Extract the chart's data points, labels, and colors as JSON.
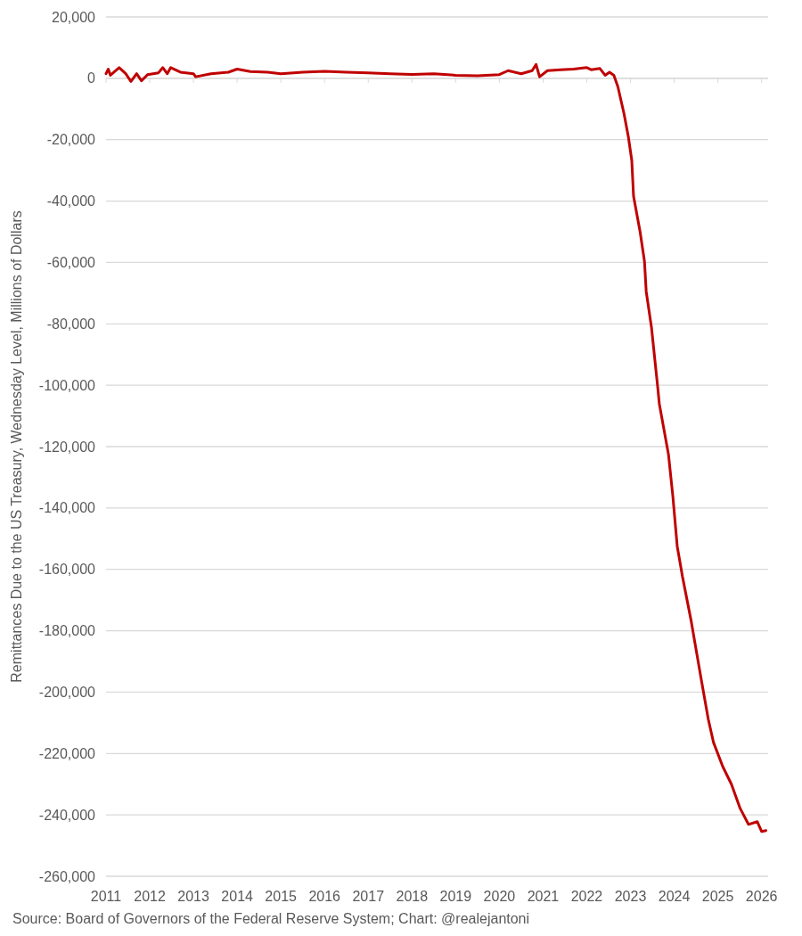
{
  "chart_data": {
    "type": "line",
    "ylabel": "Remittances Due to the US Treasury, Wednesday Level, Millions of Dollars",
    "annotations": [
      "Source: Board of Governors of the Federal Reserve System; Chart: @realejantoni"
    ],
    "x": [
      2011.0,
      2011.05,
      2011.1,
      2011.3,
      2011.45,
      2011.57,
      2011.7,
      2011.81,
      2011.95,
      2012.2,
      2012.3,
      2012.4,
      2012.48,
      2012.7,
      2013.0,
      2013.05,
      2013.4,
      2013.8,
      2014.0,
      2014.3,
      2014.7,
      2015.0,
      2015.5,
      2016.0,
      2016.5,
      2017.0,
      2017.5,
      2018.0,
      2018.5,
      2019.0,
      2019.5,
      2020.0,
      2020.2,
      2020.5,
      2020.75,
      2020.84,
      2020.92,
      2021.1,
      2021.4,
      2021.7,
      2022.0,
      2022.1,
      2022.3,
      2022.42,
      2022.52,
      2022.62,
      2022.71,
      2022.85,
      2022.95,
      2023.03,
      2023.07,
      2023.22,
      2023.32,
      2023.36,
      2023.48,
      2023.62,
      2023.66,
      2023.87,
      2023.97,
      2024.07,
      2024.19,
      2024.39,
      2024.6,
      2024.78,
      2024.9,
      2025.11,
      2025.31,
      2025.51,
      2025.7,
      2025.9,
      2026.0,
      2026.1
    ],
    "series": [
      {
        "color": "#c00000",
        "values": [
          1500,
          3000,
          1000,
          3500,
          1500,
          -1000,
          1500,
          -800,
          1200,
          1800,
          3500,
          1500,
          3500,
          2000,
          1500,
          500,
          1500,
          2000,
          3000,
          2200,
          2000,
          1500,
          2000,
          2300,
          2000,
          1800,
          1500,
          1300,
          1500,
          1000,
          800,
          1200,
          2500,
          1500,
          2500,
          4500,
          500,
          2500,
          2800,
          3000,
          3500,
          2800,
          3200,
          1000,
          2000,
          1000,
          -2650,
          -11360,
          -18900,
          -26750,
          -38370,
          -50000,
          -59570,
          -69440,
          -81060,
          -100230,
          -106040,
          -122590,
          -136240,
          -152500,
          -162370,
          -176900,
          -194300,
          -208800,
          -216400,
          -224200,
          -230000,
          -237900,
          -243100,
          -242200,
          -245400,
          -245100
        ]
      }
    ],
    "xlim": [
      2011,
      2026.15
    ],
    "xticks": [
      2011,
      2012,
      2013,
      2014,
      2015,
      2016,
      2017,
      2018,
      2019,
      2020,
      2021,
      2022,
      2023,
      2024,
      2025,
      2026
    ],
    "ylim": [
      -260000,
      20000
    ],
    "yticks": [
      {
        "value": -260000,
        "label": "-260,000"
      },
      {
        "value": -240000,
        "label": "-240,000"
      },
      {
        "value": -220000,
        "label": "-220,000"
      },
      {
        "value": -200000,
        "label": "-200,000"
      },
      {
        "value": -180000,
        "label": "-180,000"
      },
      {
        "value": -160000,
        "label": "-160,000"
      },
      {
        "value": -140000,
        "label": "-140,000"
      },
      {
        "value": -120000,
        "label": "-120,000"
      },
      {
        "value": -100000,
        "label": "-100,000"
      },
      {
        "value": -80000,
        "label": "-80,000"
      },
      {
        "value": -60000,
        "label": "-60,000"
      },
      {
        "value": -40000,
        "label": "-40,000"
      },
      {
        "value": -20000,
        "label": "-20,000"
      },
      {
        "value": 0,
        "label": "0"
      },
      {
        "value": 20000,
        "label": "20,000"
      }
    ],
    "grid": "y",
    "marker": "none",
    "line_style": "solid"
  }
}
